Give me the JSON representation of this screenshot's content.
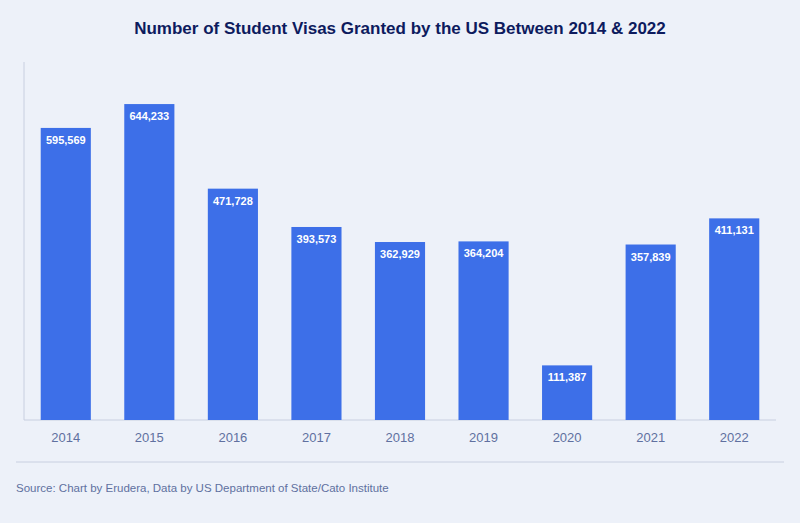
{
  "chart_data": {
    "type": "bar",
    "title": "Number of Student Visas Granted by the US Between 2014 & 2022",
    "categories": [
      "2014",
      "2015",
      "2016",
      "2017",
      "2018",
      "2019",
      "2020",
      "2021",
      "2022"
    ],
    "values": [
      595569,
      644233,
      471728,
      393573,
      362929,
      364204,
      111387,
      357839,
      411131
    ],
    "value_labels": [
      "595,569",
      "644,233",
      "471,728",
      "393,573",
      "362,929",
      "364,204",
      "111,387",
      "357,839",
      "411,131"
    ],
    "color": "#3d6fe8",
    "ylim": [
      0,
      730000
    ],
    "grid": false,
    "data_labels": true,
    "tick_labels": "x",
    "annotations": [
      "Source: Chart by Erudera, Data by US Department of State/Cato Institute"
    ]
  }
}
